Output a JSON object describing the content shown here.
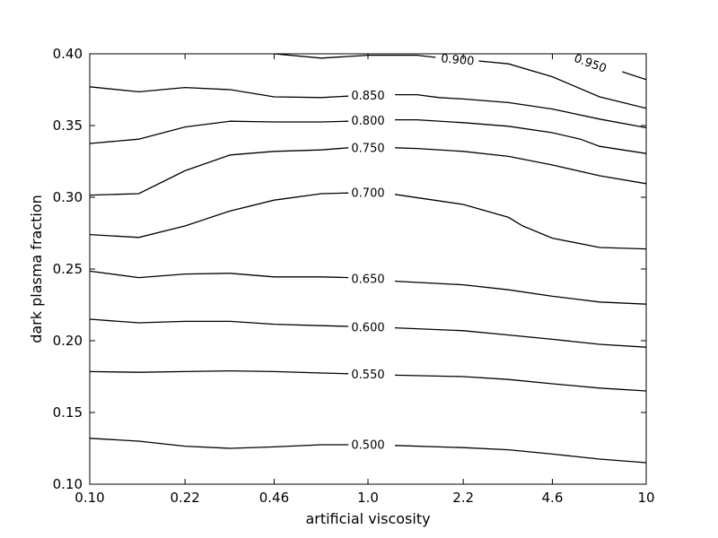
{
  "chart_data": {
    "type": "contour",
    "title": "",
    "xlabel": "artificial viscosity",
    "ylabel": "dark plasma fraction",
    "xscale": "log",
    "xlim": [
      0.1,
      10
    ],
    "ylim": [
      0.1,
      0.4
    ],
    "x_tick_labels": [
      "0.10",
      "0.22",
      "0.46",
      "1.0",
      "2.2",
      "4.6",
      "10"
    ],
    "x_ticks": [
      0.1,
      0.22,
      0.46,
      1.0,
      2.2,
      4.6,
      10
    ],
    "y_tick_labels": [
      "0.10",
      "0.15",
      "0.20",
      "0.25",
      "0.30",
      "0.35",
      "0.40"
    ],
    "y_ticks": [
      0.1,
      0.15,
      0.2,
      0.25,
      0.3,
      0.35,
      0.4
    ],
    "grid": false,
    "contours": [
      {
        "label": "0.500",
        "label_at": [
          0.1,
          0.13
        ],
        "segments": [
          [
            [
              0.1,
              0.132
            ],
            [
              0.15,
              0.13
            ],
            [
              0.22,
              0.1265
            ],
            [
              0.32,
              0.125
            ],
            [
              0.46,
              0.126
            ],
            [
              0.68,
              0.1275
            ],
            [
              0.85,
              0.1275
            ]
          ],
          [
            [
              1.25,
              0.127
            ],
            [
              2.2,
              0.1255
            ],
            [
              3.2,
              0.124
            ],
            [
              4.6,
              0.121
            ],
            [
              6.8,
              0.1175
            ],
            [
              10,
              0.115
            ]
          ]
        ]
      },
      {
        "label": "0.550",
        "segments": [
          [
            [
              0.1,
              0.1785
            ],
            [
              0.15,
              0.178
            ],
            [
              0.22,
              0.1785
            ],
            [
              0.32,
              0.179
            ],
            [
              0.46,
              0.1785
            ],
            [
              0.68,
              0.1775
            ],
            [
              0.85,
              0.177
            ]
          ],
          [
            [
              1.25,
              0.176
            ],
            [
              2.2,
              0.175
            ],
            [
              3.2,
              0.173
            ],
            [
              4.6,
              0.17
            ],
            [
              6.8,
              0.167
            ],
            [
              10,
              0.165
            ]
          ]
        ]
      },
      {
        "label": "0.600",
        "segments": [
          [
            [
              0.1,
              0.215
            ],
            [
              0.15,
              0.2125
            ],
            [
              0.22,
              0.2135
            ],
            [
              0.32,
              0.2135
            ],
            [
              0.46,
              0.2115
            ],
            [
              0.68,
              0.2105
            ],
            [
              0.85,
              0.21
            ]
          ],
          [
            [
              1.25,
              0.209
            ],
            [
              2.2,
              0.207
            ],
            [
              3.2,
              0.204
            ],
            [
              4.6,
              0.201
            ],
            [
              6.8,
              0.1975
            ],
            [
              10,
              0.1955
            ]
          ]
        ]
      },
      {
        "label": "0.650",
        "segments": [
          [
            [
              0.1,
              0.2485
            ],
            [
              0.15,
              0.244
            ],
            [
              0.22,
              0.2465
            ],
            [
              0.32,
              0.247
            ],
            [
              0.46,
              0.2445
            ],
            [
              0.68,
              0.2445
            ],
            [
              0.85,
              0.244
            ]
          ],
          [
            [
              1.25,
              0.2415
            ],
            [
              2.2,
              0.239
            ],
            [
              3.2,
              0.2355
            ],
            [
              4.6,
              0.231
            ],
            [
              6.8,
              0.227
            ],
            [
              10,
              0.2255
            ]
          ]
        ]
      },
      {
        "label": "0.700",
        "segments": [
          [
            [
              0.1,
              0.274
            ],
            [
              0.15,
              0.272
            ],
            [
              0.22,
              0.28
            ],
            [
              0.32,
              0.2905
            ],
            [
              0.46,
              0.298
            ],
            [
              0.68,
              0.3025
            ],
            [
              0.85,
              0.303
            ]
          ],
          [
            [
              1.25,
              0.302
            ],
            [
              2.2,
              0.295
            ],
            [
              3.2,
              0.286
            ],
            [
              3.6,
              0.28
            ],
            [
              4.6,
              0.2715
            ],
            [
              6.8,
              0.265
            ],
            [
              10,
              0.264
            ]
          ]
        ]
      },
      {
        "label": "0.750",
        "segments": [
          [
            [
              0.1,
              0.3015
            ],
            [
              0.15,
              0.3025
            ],
            [
              0.22,
              0.3185
            ],
            [
              0.32,
              0.3295
            ],
            [
              0.46,
              0.332
            ],
            [
              0.68,
              0.333
            ],
            [
              0.85,
              0.3345
            ]
          ],
          [
            [
              1.25,
              0.3345
            ],
            [
              1.5,
              0.334
            ],
            [
              2.2,
              0.332
            ],
            [
              3.2,
              0.3285
            ],
            [
              4.6,
              0.3225
            ],
            [
              6.8,
              0.315
            ],
            [
              10,
              0.3095
            ]
          ]
        ]
      },
      {
        "label": "0.800",
        "segments": [
          [
            [
              0.1,
              0.3375
            ],
            [
              0.15,
              0.3405
            ],
            [
              0.22,
              0.349
            ],
            [
              0.32,
              0.353
            ],
            [
              0.46,
              0.3525
            ],
            [
              0.68,
              0.3525
            ],
            [
              0.85,
              0.353
            ]
          ],
          [
            [
              1.25,
              0.354
            ],
            [
              1.5,
              0.354
            ],
            [
              2.2,
              0.352
            ],
            [
              3.2,
              0.3495
            ],
            [
              4.6,
              0.345
            ],
            [
              5.8,
              0.3405
            ],
            [
              6.8,
              0.3355
            ],
            [
              10,
              0.3305
            ]
          ]
        ]
      },
      {
        "label": "0.850",
        "segments": [
          [
            [
              0.1,
              0.377
            ],
            [
              0.15,
              0.3735
            ],
            [
              0.22,
              0.3765
            ],
            [
              0.32,
              0.375
            ],
            [
              0.46,
              0.37
            ],
            [
              0.68,
              0.3695
            ],
            [
              0.85,
              0.3705
            ]
          ],
          [
            [
              1.25,
              0.3715
            ],
            [
              1.5,
              0.3715
            ],
            [
              1.8,
              0.3695
            ],
            [
              2.2,
              0.3685
            ],
            [
              3.2,
              0.366
            ],
            [
              4.6,
              0.3615
            ],
            [
              6.8,
              0.3545
            ],
            [
              10,
              0.3485
            ]
          ]
        ]
      },
      {
        "label": "0.900",
        "segments": [
          [
            [
              0.46,
              0.4
            ],
            [
              0.68,
              0.397
            ],
            [
              1.0,
              0.399
            ],
            [
              1.5,
              0.399
            ],
            [
              1.75,
              0.3975
            ]
          ],
          [
            [
              2.5,
              0.395
            ],
            [
              3.2,
              0.393
            ],
            [
              4.6,
              0.384
            ],
            [
              6.8,
              0.37
            ],
            [
              10,
              0.362
            ]
          ]
        ]
      },
      {
        "label": "0.950",
        "segments": [
          [
            [
              8.2,
              0.3875
            ],
            [
              10,
              0.382
            ]
          ]
        ]
      }
    ],
    "contour_labels": [
      {
        "text": "0.500",
        "x": 1.0,
        "y": 0.1275
      },
      {
        "text": "0.550",
        "x": 1.0,
        "y": 0.1765
      },
      {
        "text": "0.600",
        "x": 1.0,
        "y": 0.2095
      },
      {
        "text": "0.650",
        "x": 1.0,
        "y": 0.243
      },
      {
        "text": "0.700",
        "x": 1.0,
        "y": 0.303
      },
      {
        "text": "0.750",
        "x": 1.0,
        "y": 0.3345
      },
      {
        "text": "0.800",
        "x": 1.0,
        "y": 0.3535
      },
      {
        "text": "0.850",
        "x": 1.0,
        "y": 0.371
      },
      {
        "text": "0.900",
        "x": 2.1,
        "y": 0.396,
        "rotate": 5
      },
      {
        "text": "0.950",
        "x": 6.3,
        "y": 0.3935,
        "rotate": 20
      }
    ]
  }
}
